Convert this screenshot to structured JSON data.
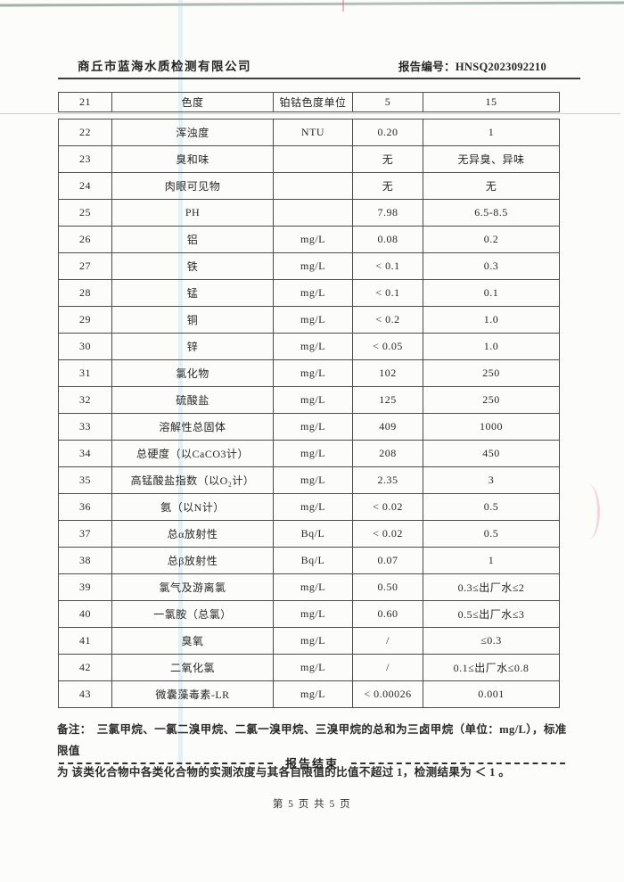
{
  "header": {
    "company": "商丘市蓝海水质检测有限公司",
    "report_no_label": "报告编号：",
    "report_no": "HNSQ2023092210"
  },
  "table": {
    "rows": [
      {
        "no": "21",
        "name": "色度",
        "unit": "铂钴色度单位",
        "value": "5",
        "limit": "15"
      },
      {
        "no": "22",
        "name": "浑浊度",
        "unit": "NTU",
        "value": "0.20",
        "limit": "1"
      },
      {
        "no": "23",
        "name": "臭和味",
        "unit": "",
        "value": "无",
        "limit": "无异臭、异味"
      },
      {
        "no": "24",
        "name": "肉眼可见物",
        "unit": "",
        "value": "无",
        "limit": "无"
      },
      {
        "no": "25",
        "name": "PH",
        "unit": "",
        "value": "7.98",
        "limit": "6.5-8.5"
      },
      {
        "no": "26",
        "name": "铝",
        "unit": "mg/L",
        "value": "0.08",
        "limit": "0.2"
      },
      {
        "no": "27",
        "name": "铁",
        "unit": "mg/L",
        "value": "< 0.1",
        "limit": "0.3"
      },
      {
        "no": "28",
        "name": "锰",
        "unit": "mg/L",
        "value": "< 0.1",
        "limit": "0.1"
      },
      {
        "no": "29",
        "name": "铜",
        "unit": "mg/L",
        "value": "< 0.2",
        "limit": "1.0"
      },
      {
        "no": "30",
        "name": "锌",
        "unit": "mg/L",
        "value": "< 0.05",
        "limit": "1.0"
      },
      {
        "no": "31",
        "name": "氯化物",
        "unit": "mg/L",
        "value": "102",
        "limit": "250"
      },
      {
        "no": "32",
        "name": "硫酸盐",
        "unit": "mg/L",
        "value": "125",
        "limit": "250"
      },
      {
        "no": "33",
        "name": "溶解性总固体",
        "unit": "mg/L",
        "value": "409",
        "limit": "1000"
      },
      {
        "no": "34",
        "name": "总硬度（以CaCO3计）",
        "unit": "mg/L",
        "value": "208",
        "limit": "450"
      },
      {
        "no": "35",
        "name": "高锰酸盐指数（以O₂计）",
        "unit": "mg/L",
        "value": "2.35",
        "limit": "3"
      },
      {
        "no": "36",
        "name": "氨（以N计）",
        "unit": "mg/L",
        "value": "< 0.02",
        "limit": "0.5"
      },
      {
        "no": "37",
        "name": "总α放射性",
        "unit": "Bq/L",
        "value": "< 0.02",
        "limit": "0.5"
      },
      {
        "no": "38",
        "name": "总β放射性",
        "unit": "Bq/L",
        "value": "0.07",
        "limit": "1"
      },
      {
        "no": "39",
        "name": "氯气及游离氯",
        "unit": "mg/L",
        "value": "0.50",
        "limit": "0.3≤出厂水≤2"
      },
      {
        "no": "40",
        "name": "一氯胺（总氯）",
        "unit": "mg/L",
        "value": "0.60",
        "limit": "0.5≤出厂水≤3"
      },
      {
        "no": "41",
        "name": "臭氧",
        "unit": "mg/L",
        "value": "/",
        "limit": "≤0.3"
      },
      {
        "no": "42",
        "name": "二氧化氯",
        "unit": "mg/L",
        "value": "/",
        "limit": "0.1≤出厂水≤0.8"
      },
      {
        "no": "43",
        "name": "微囊藻毒素-LR",
        "unit": "mg/L",
        "value": "< 0.00026",
        "limit": "0.001"
      }
    ]
  },
  "note": {
    "label": "备注：",
    "line1": "三氯甲烷、一氯二溴甲烷、二氯一溴甲烷、三溴甲烷的总和为三卤甲烷（单位：mg/L），标准限值",
    "line2": "为 该类化合物中各类化合物的实测浓度与其各自限值的比值不超过 1，检测结果为 ＜ 1 。"
  },
  "footer": {
    "end_text": "报告结束",
    "page_text": "第 5 页 共 5 页"
  }
}
